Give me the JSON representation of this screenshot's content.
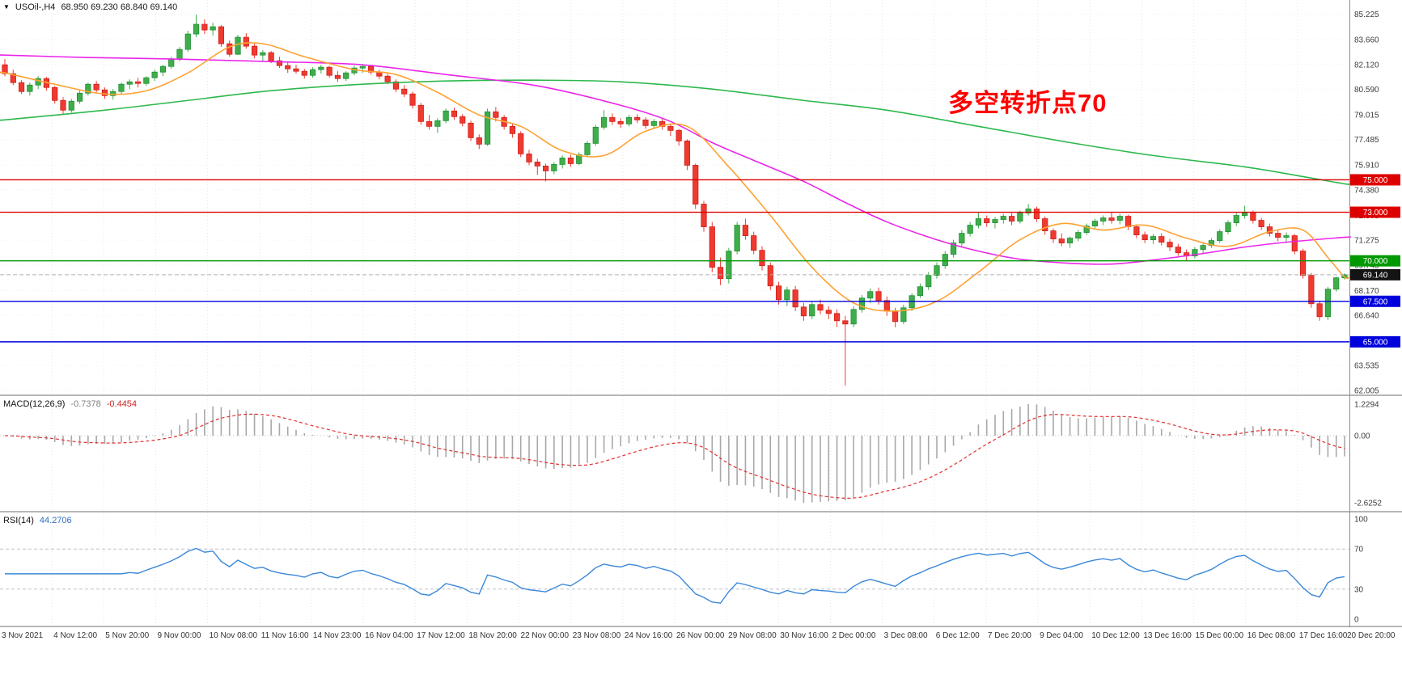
{
  "header": {
    "symbol": "USOil-,H4",
    "ohlc": "68.950 69.230 68.840 69.140"
  },
  "colors": {
    "up": "#3fae4a",
    "up_stroke": "#1f8f35",
    "down": "#ef3a30",
    "down_stroke": "#cf201a",
    "grid": "#e7e7e7",
    "macd_hist": "#a8a8a8",
    "macd_signal": "#e03030",
    "rsi_line": "#3a87d9",
    "axis_text": "#3c3c3c"
  },
  "chart_data": {
    "type": "candlestick",
    "symbol": "USOil-",
    "timeframe": "H4",
    "current_bar": {
      "open": 68.95,
      "high": 69.23,
      "low": 68.84,
      "close": 69.14
    },
    "annotation": {
      "text": "多空转折点70",
      "color": "#ff0000"
    },
    "price_axis": {
      "range": [
        61.75,
        86.1
      ],
      "ticks": [
        85.225,
        83.66,
        82.12,
        80.59,
        79.015,
        77.485,
        75.91,
        74.38,
        72.805,
        71.275,
        69.745,
        68.17,
        66.64,
        65.065,
        63.535,
        62.005
      ]
    },
    "hlines": [
      {
        "price": 75.0,
        "color": "#dd0000",
        "label": "75.000"
      },
      {
        "price": 73.0,
        "color": "#dd0000",
        "label": "73.000"
      },
      {
        "price": 70.0,
        "color": "#009900",
        "label": "70.000"
      },
      {
        "price": 67.5,
        "color": "#0000dd",
        "label": "67.500"
      },
      {
        "price": 65.0,
        "color": "#0000dd",
        "label": "65.000"
      }
    ],
    "bid_line": {
      "price": 69.14,
      "label": "69.140",
      "color": "#141414"
    },
    "moving_averages": [
      {
        "name": "slow-green",
        "color": "#2db84d",
        "points": [
          [
            0,
            78.7
          ],
          [
            12,
            79.3
          ],
          [
            22,
            79.9
          ],
          [
            32,
            80.5
          ],
          [
            43,
            80.9
          ],
          [
            53,
            81.1
          ],
          [
            64,
            81.15
          ],
          [
            74,
            81.05
          ],
          [
            85,
            80.6
          ],
          [
            96,
            79.9
          ],
          [
            106,
            79.3
          ],
          [
            117,
            78.3
          ],
          [
            128,
            77.3
          ],
          [
            138,
            76.5
          ],
          [
            149,
            75.8
          ],
          [
            156,
            75.2
          ],
          [
            161,
            74.75
          ]
        ]
      },
      {
        "name": "mid-magenta",
        "color": "#ea25ea",
        "points": [
          [
            0,
            82.7
          ],
          [
            10,
            82.55
          ],
          [
            21,
            82.45
          ],
          [
            32,
            82.3
          ],
          [
            43,
            82.1
          ],
          [
            53,
            81.5
          ],
          [
            64,
            80.8
          ],
          [
            74,
            79.6
          ],
          [
            80,
            78.6
          ],
          [
            85,
            77.3
          ],
          [
            90,
            76.2
          ],
          [
            96,
            74.9
          ],
          [
            101,
            73.6
          ],
          [
            106,
            72.4
          ],
          [
            112,
            71.3
          ],
          [
            117,
            70.6
          ],
          [
            122,
            70.1
          ],
          [
            128,
            69.85
          ],
          [
            133,
            69.8
          ],
          [
            138,
            70.05
          ],
          [
            144,
            70.45
          ],
          [
            149,
            70.85
          ],
          [
            154,
            71.15
          ],
          [
            161,
            71.45
          ]
        ]
      },
      {
        "name": "fast-orange",
        "color": "#ffa133",
        "points": [
          [
            0,
            81.6
          ],
          [
            6,
            80.9
          ],
          [
            12,
            80.3
          ],
          [
            17,
            80.5
          ],
          [
            22,
            81.6
          ],
          [
            27,
            83.2
          ],
          [
            31,
            83.4
          ],
          [
            36,
            82.6
          ],
          [
            42,
            81.8
          ],
          [
            47,
            81.5
          ],
          [
            52,
            80.4
          ],
          [
            57,
            79.0
          ],
          [
            62,
            78.3
          ],
          [
            67,
            76.8
          ],
          [
            72,
            76.5
          ],
          [
            77,
            78.0
          ],
          [
            82,
            78.3
          ],
          [
            87,
            75.8
          ],
          [
            92,
            72.8
          ],
          [
            97,
            69.6
          ],
          [
            102,
            67.4
          ],
          [
            107,
            66.9
          ],
          [
            112,
            67.5
          ],
          [
            117,
            69.3
          ],
          [
            122,
            71.3
          ],
          [
            127,
            72.3
          ],
          [
            132,
            71.9
          ],
          [
            137,
            72.2
          ],
          [
            142,
            71.4
          ],
          [
            147,
            70.9
          ],
          [
            152,
            71.8
          ],
          [
            156,
            71.9
          ],
          [
            159,
            70.2
          ],
          [
            161,
            69.0
          ]
        ]
      }
    ],
    "candles": [
      [
        82.1,
        82.45,
        81.4,
        81.55
      ],
      [
        81.55,
        81.8,
        80.85,
        81.0
      ],
      [
        81.0,
        81.15,
        80.3,
        80.45
      ],
      [
        80.45,
        81.0,
        80.2,
        80.85
      ],
      [
        80.85,
        81.4,
        80.6,
        81.25
      ],
      [
        81.25,
        81.35,
        80.5,
        80.7
      ],
      [
        80.7,
        80.8,
        79.7,
        79.9
      ],
      [
        79.9,
        80.1,
        79.0,
        79.3
      ],
      [
        79.3,
        80.0,
        79.15,
        79.85
      ],
      [
        79.85,
        80.5,
        79.7,
        80.35
      ],
      [
        80.35,
        81.0,
        80.2,
        80.9
      ],
      [
        80.9,
        81.1,
        80.4,
        80.55
      ],
      [
        80.55,
        80.7,
        80.0,
        80.2
      ],
      [
        80.2,
        80.6,
        79.95,
        80.45
      ],
      [
        80.45,
        81.0,
        80.3,
        80.9
      ],
      [
        80.9,
        81.2,
        80.6,
        81.05
      ],
      [
        81.05,
        81.3,
        80.7,
        80.95
      ],
      [
        80.95,
        81.4,
        80.8,
        81.3
      ],
      [
        81.3,
        81.8,
        81.1,
        81.65
      ],
      [
        81.65,
        82.1,
        81.4,
        82.0
      ],
      [
        82.0,
        82.6,
        81.85,
        82.45
      ],
      [
        82.45,
        83.2,
        82.3,
        83.05
      ],
      [
        83.05,
        84.2,
        82.9,
        84.0
      ],
      [
        84.0,
        85.2,
        83.8,
        84.6
      ],
      [
        84.6,
        84.9,
        84.0,
        84.25
      ],
      [
        84.25,
        84.7,
        83.9,
        84.45
      ],
      [
        84.45,
        84.55,
        83.2,
        83.4
      ],
      [
        83.4,
        83.6,
        82.6,
        82.75
      ],
      [
        82.75,
        83.95,
        82.7,
        83.8
      ],
      [
        83.8,
        84.05,
        83.1,
        83.25
      ],
      [
        83.25,
        83.4,
        82.5,
        82.7
      ],
      [
        82.7,
        83.0,
        82.3,
        82.85
      ],
      [
        82.85,
        82.95,
        82.2,
        82.35
      ],
      [
        82.35,
        82.6,
        81.9,
        82.05
      ],
      [
        82.05,
        82.25,
        81.6,
        81.85
      ],
      [
        81.85,
        82.1,
        81.55,
        81.7
      ],
      [
        81.7,
        81.85,
        81.25,
        81.45
      ],
      [
        81.45,
        81.95,
        81.3,
        81.8
      ],
      [
        81.8,
        82.1,
        81.55,
        81.95
      ],
      [
        81.95,
        82.05,
        81.3,
        81.45
      ],
      [
        81.45,
        81.7,
        81.05,
        81.25
      ],
      [
        81.25,
        81.7,
        81.1,
        81.6
      ],
      [
        81.6,
        82.05,
        81.45,
        81.9
      ],
      [
        81.9,
        82.15,
        81.6,
        82.0
      ],
      [
        82.0,
        82.1,
        81.5,
        81.65
      ],
      [
        81.65,
        81.8,
        81.2,
        81.4
      ],
      [
        81.4,
        81.55,
        80.9,
        81.05
      ],
      [
        81.05,
        81.2,
        80.4,
        80.6
      ],
      [
        80.6,
        80.85,
        80.1,
        80.3
      ],
      [
        80.3,
        80.45,
        79.4,
        79.6
      ],
      [
        79.6,
        79.75,
        78.4,
        78.6
      ],
      [
        78.6,
        79.0,
        78.1,
        78.3
      ],
      [
        78.3,
        78.8,
        77.9,
        78.65
      ],
      [
        78.65,
        79.4,
        78.5,
        79.25
      ],
      [
        79.25,
        79.45,
        78.7,
        78.9
      ],
      [
        78.9,
        79.05,
        78.3,
        78.5
      ],
      [
        78.5,
        78.65,
        77.4,
        77.6
      ],
      [
        77.6,
        77.8,
        76.9,
        77.2
      ],
      [
        77.2,
        79.4,
        77.1,
        79.2
      ],
      [
        79.2,
        79.5,
        78.6,
        78.85
      ],
      [
        78.85,
        79.0,
        78.1,
        78.3
      ],
      [
        78.3,
        78.45,
        77.6,
        77.85
      ],
      [
        77.85,
        78.0,
        76.4,
        76.6
      ],
      [
        76.6,
        76.85,
        75.9,
        76.1
      ],
      [
        76.1,
        76.3,
        75.3,
        75.85
      ],
      [
        75.85,
        76.0,
        74.9,
        75.55
      ],
      [
        75.55,
        76.1,
        75.35,
        75.95
      ],
      [
        75.95,
        76.5,
        75.7,
        76.35
      ],
      [
        76.35,
        76.55,
        75.8,
        76.0
      ],
      [
        76.0,
        76.7,
        75.9,
        76.55
      ],
      [
        76.55,
        77.4,
        76.4,
        77.25
      ],
      [
        77.25,
        78.4,
        77.1,
        78.25
      ],
      [
        78.25,
        79.3,
        78.1,
        78.85
      ],
      [
        78.85,
        79.1,
        78.4,
        78.6
      ],
      [
        78.6,
        78.8,
        78.2,
        78.45
      ],
      [
        78.45,
        79.0,
        78.3,
        78.85
      ],
      [
        78.85,
        79.05,
        78.5,
        78.7
      ],
      [
        78.7,
        78.85,
        78.15,
        78.35
      ],
      [
        78.35,
        78.75,
        78.2,
        78.6
      ],
      [
        78.6,
        78.75,
        78.1,
        78.3
      ],
      [
        78.3,
        78.45,
        77.7,
        78.05
      ],
      [
        78.05,
        78.15,
        77.1,
        77.4
      ],
      [
        77.4,
        77.5,
        75.6,
        75.9
      ],
      [
        75.9,
        76.0,
        73.2,
        73.5
      ],
      [
        73.5,
        73.7,
        71.8,
        72.1
      ],
      [
        72.1,
        72.4,
        69.3,
        69.6
      ],
      [
        69.6,
        70.2,
        68.5,
        68.9
      ],
      [
        68.9,
        70.8,
        68.6,
        70.6
      ],
      [
        70.6,
        72.4,
        70.4,
        72.2
      ],
      [
        72.2,
        72.6,
        71.3,
        71.55
      ],
      [
        71.55,
        71.8,
        70.4,
        70.65
      ],
      [
        70.65,
        70.9,
        69.4,
        69.7
      ],
      [
        69.7,
        69.9,
        68.2,
        68.45
      ],
      [
        68.45,
        68.7,
        67.3,
        67.6
      ],
      [
        67.6,
        68.4,
        67.2,
        68.2
      ],
      [
        68.2,
        68.45,
        66.9,
        67.15
      ],
      [
        67.15,
        67.4,
        66.3,
        66.6
      ],
      [
        66.6,
        67.5,
        66.4,
        67.3
      ],
      [
        67.3,
        67.6,
        66.7,
        66.95
      ],
      [
        66.95,
        67.2,
        66.4,
        66.75
      ],
      [
        66.75,
        67.0,
        65.9,
        66.3
      ],
      [
        66.3,
        66.6,
        62.3,
        66.1
      ],
      [
        66.1,
        67.2,
        65.9,
        67.0
      ],
      [
        67.0,
        67.9,
        66.8,
        67.7
      ],
      [
        67.7,
        68.3,
        67.4,
        68.1
      ],
      [
        68.1,
        68.35,
        67.3,
        67.55
      ],
      [
        67.55,
        67.8,
        66.6,
        66.9
      ],
      [
        66.9,
        67.1,
        65.9,
        66.25
      ],
      [
        66.25,
        67.3,
        66.1,
        67.1
      ],
      [
        67.1,
        68.0,
        66.9,
        67.85
      ],
      [
        67.85,
        68.6,
        67.7,
        68.4
      ],
      [
        68.4,
        69.3,
        68.2,
        69.1
      ],
      [
        69.1,
        69.9,
        68.9,
        69.7
      ],
      [
        69.7,
        70.6,
        69.5,
        70.4
      ],
      [
        70.4,
        71.3,
        70.2,
        71.1
      ],
      [
        71.1,
        71.9,
        70.9,
        71.7
      ],
      [
        71.7,
        72.4,
        71.5,
        72.2
      ],
      [
        72.2,
        73.0,
        72.0,
        72.6
      ],
      [
        72.6,
        72.8,
        72.1,
        72.35
      ],
      [
        72.35,
        72.7,
        72.0,
        72.55
      ],
      [
        72.55,
        72.9,
        72.3,
        72.75
      ],
      [
        72.75,
        72.95,
        72.2,
        72.45
      ],
      [
        72.45,
        73.1,
        72.3,
        72.95
      ],
      [
        72.95,
        73.5,
        72.8,
        73.2
      ],
      [
        73.2,
        73.35,
        72.4,
        72.6
      ],
      [
        72.6,
        72.75,
        71.6,
        71.85
      ],
      [
        71.85,
        72.0,
        71.1,
        71.35
      ],
      [
        71.35,
        71.7,
        70.9,
        71.1
      ],
      [
        71.1,
        71.5,
        70.8,
        71.4
      ],
      [
        71.4,
        71.9,
        71.2,
        71.75
      ],
      [
        71.75,
        72.3,
        71.6,
        72.15
      ],
      [
        72.15,
        72.6,
        71.95,
        72.45
      ],
      [
        72.45,
        72.8,
        72.2,
        72.65
      ],
      [
        72.65,
        73.0,
        72.3,
        72.5
      ],
      [
        72.5,
        72.9,
        72.25,
        72.75
      ],
      [
        72.75,
        72.85,
        71.9,
        72.1
      ],
      [
        72.1,
        72.25,
        71.4,
        71.6
      ],
      [
        71.6,
        71.8,
        71.1,
        71.3
      ],
      [
        71.3,
        71.65,
        71.05,
        71.5
      ],
      [
        71.5,
        71.7,
        70.95,
        71.15
      ],
      [
        71.15,
        71.35,
        70.6,
        70.85
      ],
      [
        70.85,
        71.05,
        70.3,
        70.5
      ],
      [
        70.5,
        70.7,
        70.0,
        70.3
      ],
      [
        70.3,
        70.85,
        70.15,
        70.7
      ],
      [
        70.7,
        71.1,
        70.45,
        70.95
      ],
      [
        70.95,
        71.4,
        70.8,
        71.25
      ],
      [
        71.25,
        71.95,
        71.1,
        71.8
      ],
      [
        71.8,
        72.5,
        71.65,
        72.35
      ],
      [
        72.35,
        72.95,
        72.15,
        72.8
      ],
      [
        72.8,
        73.4,
        72.6,
        72.95
      ],
      [
        72.95,
        73.1,
        72.3,
        72.5
      ],
      [
        72.5,
        72.65,
        71.9,
        72.1
      ],
      [
        72.1,
        72.3,
        71.5,
        71.7
      ],
      [
        71.7,
        71.95,
        71.2,
        71.45
      ],
      [
        71.45,
        71.75,
        71.1,
        71.55
      ],
      [
        71.55,
        71.65,
        70.4,
        70.6
      ],
      [
        70.6,
        70.75,
        68.9,
        69.1
      ],
      [
        69.1,
        69.25,
        67.1,
        67.35
      ],
      [
        67.35,
        67.55,
        66.3,
        66.55
      ],
      [
        66.55,
        68.4,
        66.35,
        68.25
      ],
      [
        68.25,
        69.0,
        68.1,
        68.95
      ],
      [
        68.95,
        69.23,
        68.84,
        69.14
      ]
    ],
    "macd": {
      "label": "MACD(12,26,9)",
      "value_main": "-0.7378",
      "value_signal": "-0.4454",
      "axis_ticks": [
        "1.2294",
        "0.00",
        "-2.6252"
      ],
      "max": 1.2294,
      "min": -2.6252
    },
    "rsi": {
      "label": "RSI(14)",
      "value": "44.2706",
      "axis_ticks": [
        100,
        70,
        30,
        0
      ],
      "levels": [
        70,
        30
      ],
      "color": "#3a87d9"
    },
    "time_axis": [
      "3 Nov 2021",
      "4 Nov 12:00",
      "5 Nov 20:00",
      "9 Nov 00:00",
      "10 Nov 08:00",
      "11 Nov 16:00",
      "14 Nov 23:00",
      "16 Nov 04:00",
      "17 Nov 12:00",
      "18 Nov 20:00",
      "22 Nov 00:00",
      "23 Nov 08:00",
      "24 Nov 16:00",
      "26 Nov 00:00",
      "29 Nov 08:00",
      "30 Nov 16:00",
      "2 Dec 00:00",
      "3 Dec 08:00",
      "6 Dec 12:00",
      "7 Dec 20:00",
      "9 Dec 04:00",
      "10 Dec 12:00",
      "13 Dec 16:00",
      "15 Dec 00:00",
      "16 Dec 08:00",
      "17 Dec 16:00",
      "20 Dec 20:00"
    ]
  }
}
